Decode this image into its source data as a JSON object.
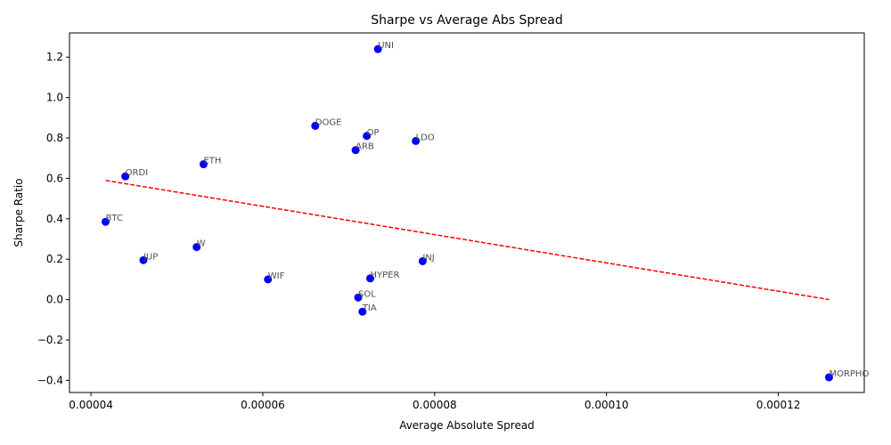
{
  "chart_data": {
    "type": "scatter",
    "title": "Sharpe vs Average Abs Spread",
    "xlabel": "Average Absolute Spread",
    "ylabel": "Sharpe Ratio",
    "xlim": [
      3.75e-05,
      0.00013
    ],
    "ylim": [
      -0.46,
      1.32
    ],
    "xticks": [
      4e-05,
      6e-05,
      8e-05,
      0.0001,
      0.00012
    ],
    "xtick_labels": [
      "0.00004",
      "0.00006",
      "0.00008",
      "0.00010",
      "0.00012"
    ],
    "yticks": [
      -0.4,
      -0.2,
      0.0,
      0.2,
      0.4,
      0.6,
      0.8,
      1.0,
      1.2
    ],
    "ytick_labels": [
      "−0.4",
      "−0.2",
      "0.0",
      "0.2",
      "0.4",
      "0.6",
      "0.8",
      "1.0",
      "1.2"
    ],
    "grid": false,
    "point_color": "#0000ff",
    "trendline_color": "#ff0000",
    "points": [
      {
        "label": "UNI",
        "x": 7.34e-05,
        "y": 1.24
      },
      {
        "label": "DOGE",
        "x": 6.61e-05,
        "y": 0.86
      },
      {
        "label": "OP",
        "x": 7.21e-05,
        "y": 0.81
      },
      {
        "label": "LDO",
        "x": 7.78e-05,
        "y": 0.785
      },
      {
        "label": "ARB",
        "x": 7.08e-05,
        "y": 0.74
      },
      {
        "label": "ETH",
        "x": 5.31e-05,
        "y": 0.67
      },
      {
        "label": "ORDI",
        "x": 4.4e-05,
        "y": 0.61
      },
      {
        "label": "BTC",
        "x": 4.17e-05,
        "y": 0.385
      },
      {
        "label": "W",
        "x": 5.23e-05,
        "y": 0.26
      },
      {
        "label": "JUP",
        "x": 4.61e-05,
        "y": 0.195
      },
      {
        "label": "INJ",
        "x": 7.86e-05,
        "y": 0.19
      },
      {
        "label": "WIF",
        "x": 6.06e-05,
        "y": 0.1
      },
      {
        "label": "HYPER",
        "x": 7.25e-05,
        "y": 0.105
      },
      {
        "label": "SOL",
        "x": 7.11e-05,
        "y": 0.01
      },
      {
        "label": "TIA",
        "x": 7.16e-05,
        "y": -0.06
      },
      {
        "label": "MORPHO",
        "x": 0.0001259,
        "y": -0.385
      }
    ],
    "trendline": {
      "x": [
        4.17e-05,
        0.0001259
      ],
      "y": [
        0.59,
        0.0
      ]
    }
  }
}
